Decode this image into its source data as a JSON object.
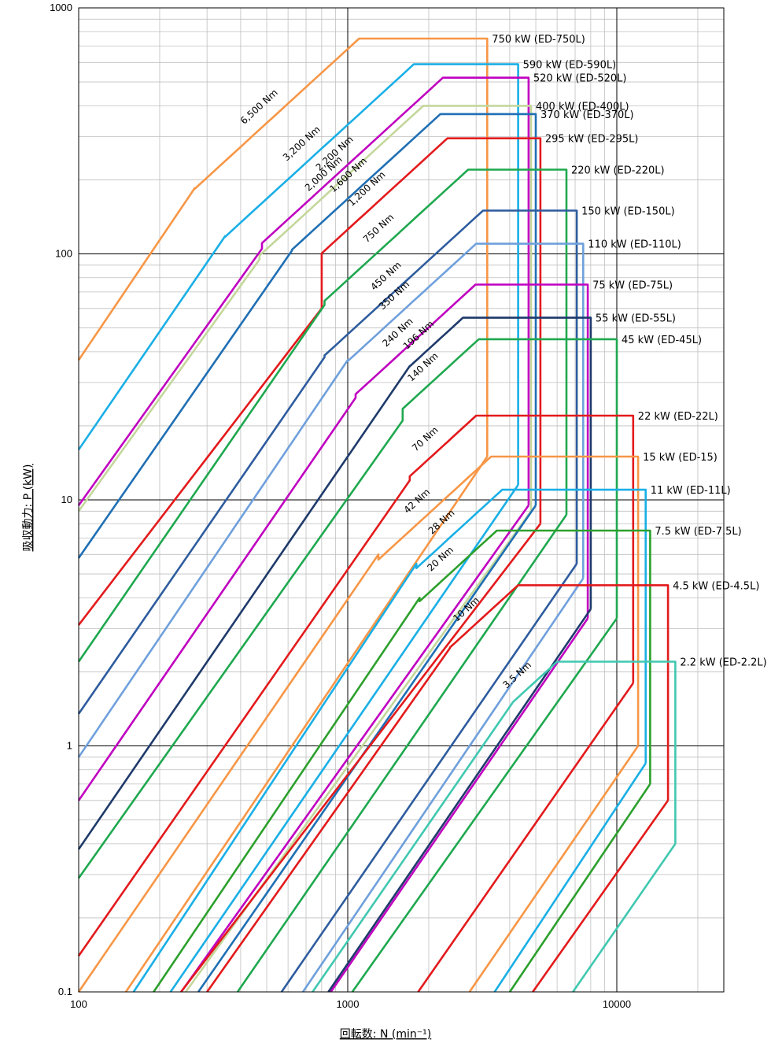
{
  "chart_data": {
    "type": "line",
    "xlabel": "回転数: N (min⁻¹)",
    "ylabel": "吸収動力: P (kW)",
    "xscale": "log",
    "yscale": "log",
    "xlim": [
      100,
      30000
    ],
    "ylim": [
      0.1,
      1000
    ],
    "x_ticks": [
      "100",
      "1000",
      "10000"
    ],
    "y_ticks": [
      "0.1",
      "1",
      "10",
      "100",
      "1000"
    ],
    "grid": true,
    "series": [
      {
        "name": "750 kW (ED-750L)",
        "color": "#F79646",
        "torque_label": "6,500 Nm",
        "torque_nm": 6500,
        "power_kw": 750,
        "max_rpm": 3300,
        "lowspeed_power_kw": 15,
        "low_x": [
          100,
          270
        ],
        "low_y": [
          37,
          185
        ]
      },
      {
        "name": "590 kW (ED-590L)",
        "color": "#1AAFE6",
        "torque_label": "3,200 Nm",
        "torque_nm": 3200,
        "power_kw": 590,
        "max_rpm": 4300,
        "lowspeed_power_kw": 11.5,
        "low_x": [
          100,
          350
        ],
        "low_y": [
          16,
          118
        ]
      },
      {
        "name": "520 kW (ED-520L)",
        "color": "#C000C0",
        "torque_label": "2,200 Nm",
        "torque_nm": 2200,
        "power_kw": 520,
        "max_rpm": 4700,
        "lowspeed_power_kw": 9.5,
        "low_x": [
          100,
          480
        ],
        "low_y": [
          9.5,
          105
        ]
      },
      {
        "name": "400 kW (ED-400L)",
        "color": "#C4D79B",
        "torque_label": "2,000 Nm",
        "torque_nm": 2000,
        "power_kw": 400,
        "max_rpm": 4800,
        "lowspeed_power_kw": 9,
        "low_x": [
          100,
          470
        ],
        "low_y": [
          9,
          95
        ]
      },
      {
        "name": "370 kW (ED-370L)",
        "color": "#1F6FB4",
        "torque_label": "1,600 Nm",
        "torque_nm": 1600,
        "power_kw": 370,
        "max_rpm": 5000,
        "lowspeed_power_kw": 9.5,
        "low_x": [
          100,
          620
        ],
        "low_y": [
          5.8,
          103
        ]
      },
      {
        "name": "295 kW (ED-295L)",
        "color": "#E31A1C",
        "torque_label": "1,200 Nm",
        "torque_nm": 1200,
        "power_kw": 295,
        "max_rpm": 5200,
        "lowspeed_power_kw": 8,
        "low_x": [
          100,
          800
        ],
        "low_y": [
          3.1,
          60
        ]
      },
      {
        "name": "220 kW (ED-220L)",
        "color": "#1FA84F",
        "torque_label": "750 Nm",
        "torque_nm": 750,
        "power_kw": 220,
        "max_rpm": 6500,
        "lowspeed_power_kw": 8.7,
        "low_x": [
          100,
          820
        ],
        "low_y": [
          2.2,
          62
        ]
      },
      {
        "name": "150 kW (ED-150L)",
        "color": "#2E5C9E",
        "torque_label": "450 Nm",
        "torque_nm": 450,
        "power_kw": 150,
        "max_rpm": 7100,
        "lowspeed_power_kw": 5.5,
        "low_x": [
          100,
          820
        ],
        "low_y": [
          1.35,
          38
        ]
      },
      {
        "name": "110 kW (ED-110L)",
        "color": "#6FA0DC",
        "torque_label": "350 Nm",
        "torque_nm": 350,
        "power_kw": 110,
        "max_rpm": 7500,
        "lowspeed_power_kw": 4.8,
        "low_x": [
          100,
          1000
        ],
        "low_y": [
          0.9,
          37
        ]
      },
      {
        "name": "75 kW (ED-75L)",
        "color": "#C000C0",
        "torque_label": "240 Nm",
        "torque_nm": 240,
        "power_kw": 75,
        "max_rpm": 7800,
        "lowspeed_power_kw": 3.3,
        "low_x": [
          100,
          1070
        ],
        "low_y": [
          0.6,
          26
        ]
      },
      {
        "name": "55 kW (ED-55L)",
        "color": "#1F3A6B",
        "torque_label": "196 Nm",
        "torque_nm": 196,
        "power_kw": 55,
        "max_rpm": 8000,
        "lowspeed_power_kw": 3.6,
        "low_x": [
          100,
          1700
        ],
        "low_y": [
          0.38,
          35
        ]
      },
      {
        "name": "45 kW (ED-45L)",
        "color": "#1FA84F",
        "torque_label": "140 Nm",
        "torque_nm": 140,
        "power_kw": 45,
        "max_rpm": 10000,
        "lowspeed_power_kw": 3.3,
        "low_x": [
          100,
          1600
        ],
        "low_y": [
          0.29,
          21
        ]
      },
      {
        "name": "22 kW (ED-22L)",
        "color": "#E31A1C",
        "torque_label": "70 Nm",
        "torque_nm": 70,
        "power_kw": 22,
        "max_rpm": 11500,
        "lowspeed_power_kw": 1.8,
        "low_x": [
          100,
          1700
        ],
        "low_y": [
          0.14,
          12
        ]
      },
      {
        "name": "15 kW (ED-15)",
        "color": "#F79646",
        "torque_label": "42 Nm",
        "torque_nm": 42,
        "power_kw": 15,
        "max_rpm": 12000,
        "lowspeed_power_kw": 1,
        "low_x": [
          100,
          1300
        ],
        "low_y": [
          0.1,
          6
        ]
      },
      {
        "name": "11 kW (ED-11L)",
        "color": "#1AAFE6",
        "torque_label": "28 Nm",
        "torque_nm": 28,
        "power_kw": 11,
        "max_rpm": 12800,
        "lowspeed_power_kw": 0.85,
        "low_x": [
          160,
          1800
        ],
        "low_y": [
          0.1,
          5.5
        ]
      },
      {
        "name": "7.5 kW (ED-7.5L)",
        "color": "#2CA02C",
        "torque_label": "20 Nm",
        "torque_nm": 20,
        "power_kw": 7.5,
        "max_rpm": 13300,
        "lowspeed_power_kw": 0.7,
        "low_x": [
          190,
          1850
        ],
        "low_y": [
          0.1,
          4
        ]
      },
      {
        "name": "4.5 kW (ED-4.5L)",
        "color": "#E31A1C",
        "torque_label": "10 Nm",
        "torque_nm": 10,
        "power_kw": 4.5,
        "max_rpm": 15500,
        "lowspeed_power_kw": 0.6,
        "low_x": [
          300,
          2400
        ],
        "low_y": [
          0.1,
          2.5
        ]
      },
      {
        "name": "2.2 kW (ED-2.2L)",
        "color": "#40C8B0",
        "torque_label": "3.5 Nm",
        "torque_nm": 3.5,
        "power_kw": 2.2,
        "max_rpm": 16500,
        "lowspeed_power_kw": 0.4,
        "low_x": [
          740,
          4100
        ],
        "low_y": [
          0.1,
          1.5
        ]
      }
    ]
  }
}
